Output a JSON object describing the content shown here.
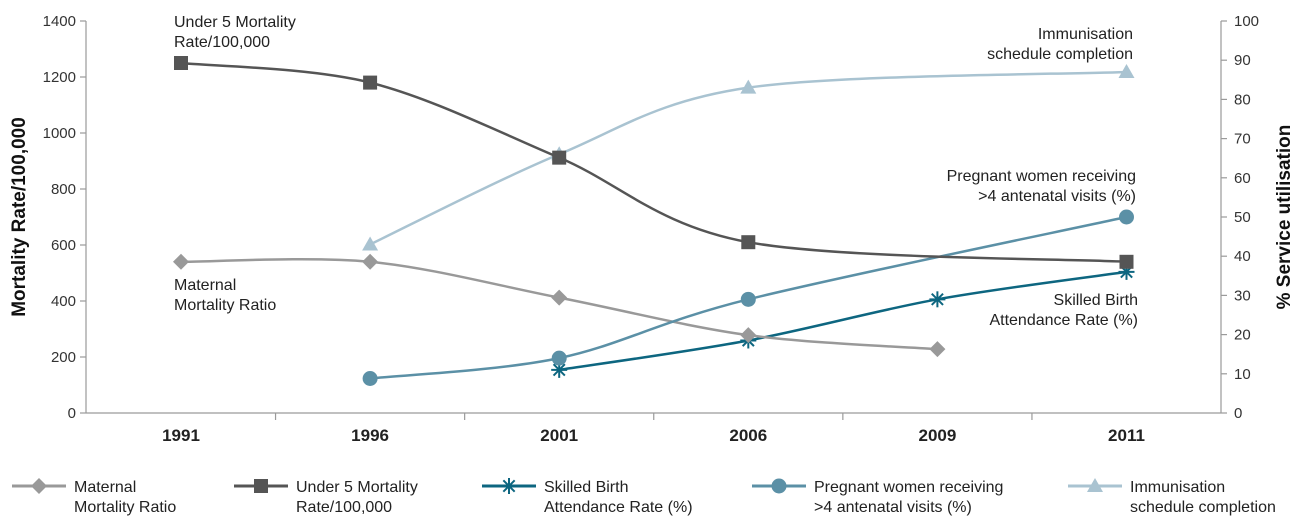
{
  "chart_data": {
    "type": "line",
    "categories": [
      "1991",
      "1996",
      "2001",
      "2006",
      "2009",
      "2011"
    ],
    "left_axis": {
      "label": "Mortality Rate/100,000",
      "ylim": [
        0,
        1400
      ],
      "ticks": [
        "0",
        "200",
        "400",
        "600",
        "800",
        "1000",
        "1200",
        "1400"
      ]
    },
    "right_axis": {
      "label": "% Service utilisation",
      "ylim": [
        0,
        100
      ],
      "ticks": [
        "0",
        "10",
        "20",
        "30",
        "40",
        "50",
        "60",
        "70",
        "80",
        "90",
        "100"
      ]
    },
    "series": [
      {
        "name": "Maternal Mortality Ratio",
        "legend_lines": [
          "Maternal",
          "Mortality Ratio"
        ],
        "axis": "left",
        "color": "#999999",
        "marker": "diamond",
        "points": [
          [
            0,
            540
          ],
          [
            1,
            540
          ],
          [
            2,
            412
          ],
          [
            3,
            278
          ],
          [
            4,
            228
          ]
        ]
      },
      {
        "name": "Under 5 Mortality Rate/100,000",
        "legend_lines": [
          "Under 5 Mortality",
          "Rate/100,000"
        ],
        "axis": "left",
        "color": "#555555",
        "marker": "square",
        "points": [
          [
            0,
            1250
          ],
          [
            1,
            1180
          ],
          [
            2,
            912
          ],
          [
            3,
            610
          ],
          [
            5,
            540
          ]
        ]
      },
      {
        "name": "Skilled Birth Attendance Rate (%)",
        "legend_lines": [
          "Skilled Birth",
          "Attendance Rate (%)"
        ],
        "axis": "right",
        "color": "#0d6680",
        "marker": "asterisk",
        "points": [
          [
            2,
            11
          ],
          [
            3,
            18.5
          ],
          [
            4,
            29
          ],
          [
            5,
            36
          ]
        ]
      },
      {
        "name": "Pregnant women receiving >4 antenatal visits (%)",
        "legend_lines": [
          "Pregnant women receiving",
          ">4 antenatal visits (%)"
        ],
        "axis": "right",
        "color": "#5b90a6",
        "marker": "circle",
        "points": [
          [
            1,
            8.8
          ],
          [
            2,
            14
          ],
          [
            3,
            29
          ],
          [
            5,
            50
          ]
        ]
      },
      {
        "name": "Immunisation schedule completion",
        "legend_lines": [
          "Immunisation",
          "schedule completion"
        ],
        "axis": "right",
        "color": "#a9c3d1",
        "marker": "triangle",
        "points": [
          [
            1,
            43
          ],
          [
            2,
            66
          ],
          [
            3,
            83
          ],
          [
            5,
            87
          ]
        ]
      }
    ],
    "annotations": [
      {
        "series": 1,
        "lines": [
          "Under 5 Mortality",
          "Rate/100,000"
        ]
      },
      {
        "series": 4,
        "lines": [
          "Immunisation",
          "schedule completion"
        ]
      },
      {
        "series": 3,
        "lines": [
          "Pregnant women receiving",
          ">4 antenatal visits (%)"
        ]
      },
      {
        "series": 0,
        "lines": [
          "Maternal",
          "Mortality Ratio"
        ]
      },
      {
        "series": 2,
        "lines": [
          "Skilled Birth",
          "Attendance Rate (%)"
        ]
      }
    ],
    "grid": false,
    "legend_position": "bottom"
  }
}
